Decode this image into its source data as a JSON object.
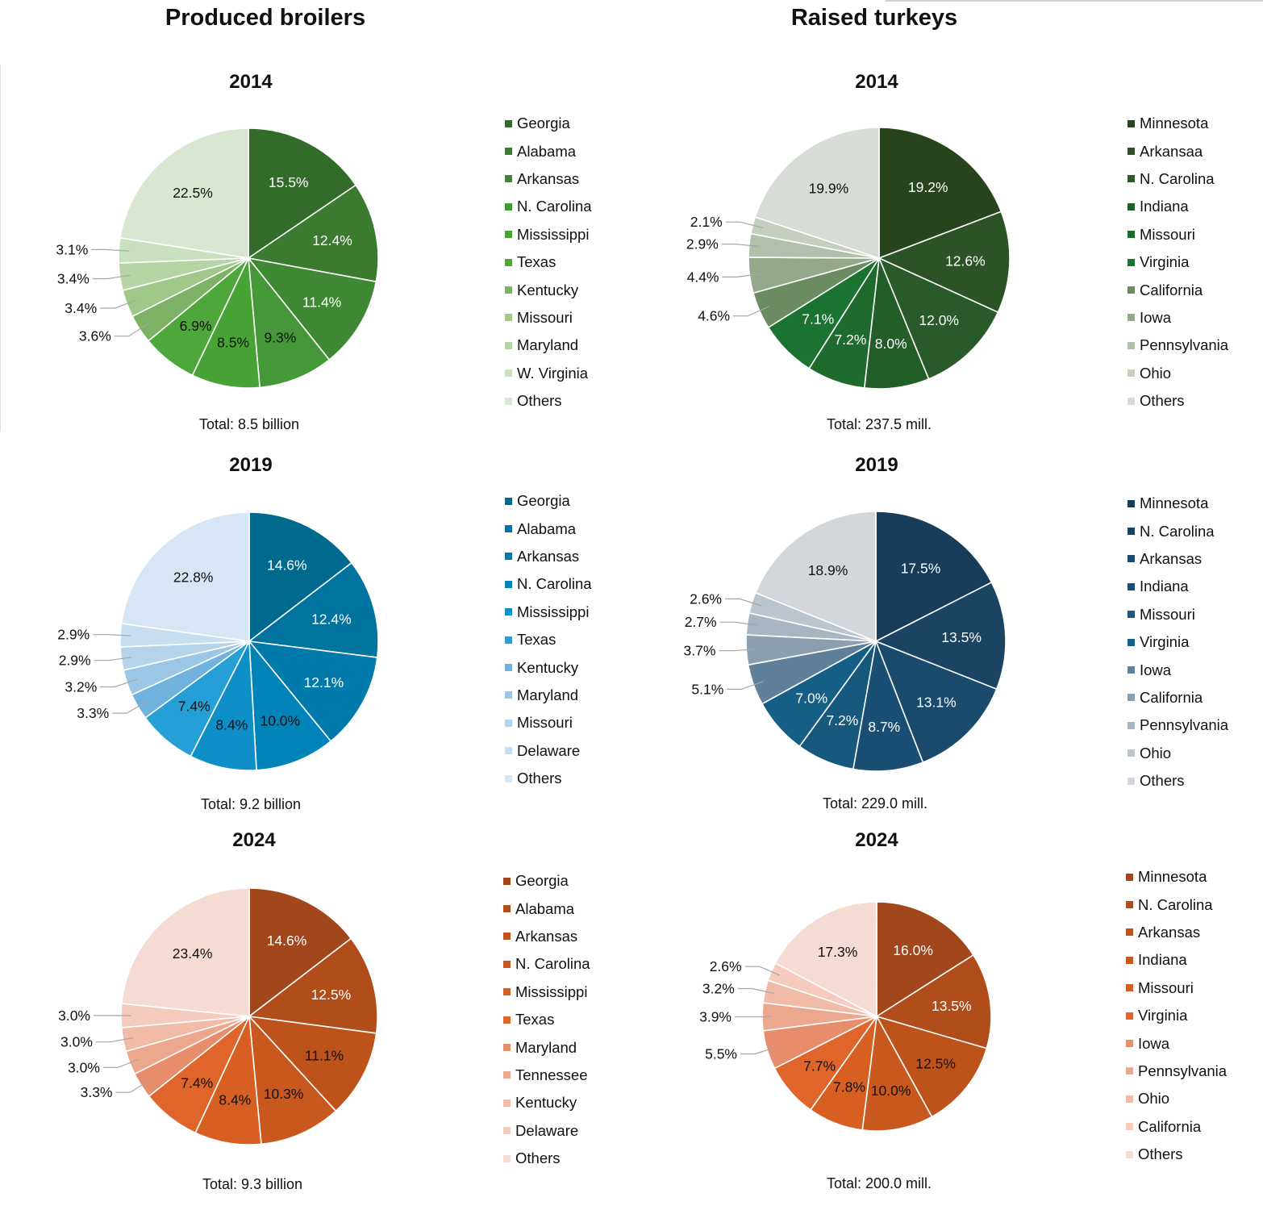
{
  "columns": {
    "broilers_title": "Produced broilers",
    "turkeys_title": "Raised turkeys"
  },
  "chart_data": [
    {
      "type": "pie",
      "group": "Produced broilers",
      "title": "2014",
      "total": "Total: 8.5 billion",
      "categories": [
        "Georgia",
        "Alabama",
        "Arkansas",
        "N. Carolina",
        "Mississippi",
        "Texas",
        "Kentucky",
        "Missouri",
        "Maryland",
        "W. Virginia",
        "Others"
      ],
      "values": [
        15.5,
        12.4,
        11.4,
        9.3,
        8.5,
        6.9,
        3.6,
        3.4,
        3.4,
        3.1,
        22.5
      ],
      "labels": [
        "15.5%",
        "12.4%",
        "11.4%",
        "9.3%",
        "8.5%",
        "6.9%",
        "3.6%",
        "3.4%",
        "3.4%",
        "3.1%",
        "22.5%"
      ],
      "colors": [
        "#336b2a",
        "#3a7b30",
        "#3f8934",
        "#449837",
        "#47a336",
        "#4ea73a",
        "#7db164",
        "#a0c88a",
        "#b5d5a5",
        "#c8e0bd",
        "#d9e7d1"
      ],
      "label_colors": [
        "#ffffff",
        "#ffffff",
        "#ffffff",
        "#111111",
        "#111111",
        "#111111",
        "#111111",
        "#111111",
        "#111111",
        "#111111",
        "#111111"
      ]
    },
    {
      "type": "pie",
      "group": "Raised turkeys",
      "title": "2014",
      "total": "Total: 237.5 mill.",
      "categories": [
        "Minnesota",
        "Arkansaa",
        "N. Carolina",
        "Indiana",
        "Missouri",
        "Virginia",
        "California",
        "Iowa",
        "Pennsylvania",
        "Ohio",
        "Others"
      ],
      "values": [
        19.2,
        12.6,
        12.0,
        8.0,
        7.2,
        7.1,
        4.6,
        4.4,
        2.9,
        2.1,
        19.9
      ],
      "labels": [
        "19.2%",
        "12.6%",
        "12.0%",
        "8.0%",
        "7.2%",
        "7.1%",
        "4.6%",
        "4.4%",
        "2.9%",
        "2.1%",
        "19.9%"
      ],
      "colors": [
        "#27441d",
        "#2c5326",
        "#2b5a2a",
        "#235e28",
        "#1f6a2d",
        "#1a7330",
        "#6a8c60",
        "#94a98b",
        "#b2c0ab",
        "#c6cfbf",
        "#d8dcd6"
      ],
      "label_colors": [
        "#ffffff",
        "#ffffff",
        "#ffffff",
        "#ffffff",
        "#ffffff",
        "#ffffff",
        "#111111",
        "#111111",
        "#111111",
        "#111111",
        "#111111"
      ]
    },
    {
      "type": "pie",
      "group": "Produced broilers",
      "title": "2019",
      "total": "Total: 9.2 billion",
      "categories": [
        "Georgia",
        "Alabama",
        "Arkansas",
        "N. Carolina",
        "Mississippi",
        "Texas",
        "Kentucky",
        "Maryland",
        "Missouri",
        "Delaware",
        "Others"
      ],
      "values": [
        14.6,
        12.4,
        12.1,
        10.0,
        8.4,
        7.4,
        3.3,
        3.2,
        2.9,
        2.9,
        22.8
      ],
      "labels": [
        "14.6%",
        "12.4%",
        "12.1%",
        "10.0%",
        "8.4%",
        "7.4%",
        "3.3%",
        "3.2%",
        "2.9%",
        "2.9%",
        "22.8%"
      ],
      "colors": [
        "#006a8e",
        "#00739f",
        "#0079ab",
        "#0083b8",
        "#0e8fc7",
        "#269fd6",
        "#6fb2de",
        "#9cc6e5",
        "#b5d4ec",
        "#c6def0",
        "#d6e6f4"
      ],
      "label_colors": [
        "#ffffff",
        "#ffffff",
        "#ffffff",
        "#111111",
        "#111111",
        "#111111",
        "#111111",
        "#111111",
        "#111111",
        "#111111",
        "#111111"
      ]
    },
    {
      "type": "pie",
      "group": "Raised turkeys",
      "title": "2019",
      "total": "Total: 229.0 mill.",
      "categories": [
        "Minnesota",
        "N. Carolina",
        "Arkansas",
        "Indiana",
        "Missouri",
        "Virginia",
        "Iowa",
        "California",
        "Pennsylvania",
        "Ohio",
        "Others"
      ],
      "values": [
        17.5,
        13.5,
        13.1,
        8.7,
        7.2,
        7.0,
        5.1,
        3.7,
        2.7,
        2.6,
        18.9
      ],
      "labels": [
        "17.5%",
        "13.5%",
        "13.1%",
        "8.7%",
        "7.2%",
        "7.0%",
        "5.1%",
        "3.7%",
        "2.7%",
        "2.6%",
        "18.9%"
      ],
      "colors": [
        "#173d5a",
        "#1a4462",
        "#1a4a6c",
        "#1a4f74",
        "#17587d",
        "#155f86",
        "#5f7f9a",
        "#8c9fb0",
        "#a8b5c2",
        "#bcc5ce",
        "#d3d7dc"
      ],
      "label_colors": [
        "#ffffff",
        "#ffffff",
        "#ffffff",
        "#ffffff",
        "#ffffff",
        "#ffffff",
        "#111111",
        "#111111",
        "#111111",
        "#111111",
        "#111111"
      ]
    },
    {
      "type": "pie",
      "group": "Produced broilers",
      "title": "2024",
      "total": "Total: 9.3 billion",
      "categories": [
        "Georgia",
        "Alabama",
        "Arkansas",
        "N. Carolina",
        "Mississippi",
        "Texas",
        "Maryland",
        "Tennessee",
        "Kentucky",
        "Delaware",
        "Others"
      ],
      "values": [
        14.6,
        12.5,
        11.1,
        10.3,
        8.4,
        7.4,
        3.3,
        3.0,
        3.0,
        3.0,
        23.4
      ],
      "labels": [
        "14.6%",
        "12.5%",
        "11.1%",
        "10.3%",
        "8.4%",
        "7.4%",
        "3.3%",
        "3.0%",
        "3.0%",
        "3.0%",
        "23.4%"
      ],
      "colors": [
        "#a2461b",
        "#b14d1b",
        "#be521b",
        "#c9581e",
        "#d65f21",
        "#e0652a",
        "#e88d6b",
        "#eda78e",
        "#f1bba7",
        "#f4cbbd",
        "#f6dbd2"
      ],
      "label_colors": [
        "#ffffff",
        "#ffffff",
        "#111111",
        "#111111",
        "#111111",
        "#111111",
        "#111111",
        "#111111",
        "#111111",
        "#111111",
        "#111111"
      ]
    },
    {
      "type": "pie",
      "group": "Raised turkeys",
      "title": "2024",
      "total": "Total: 200.0 mill.",
      "categories": [
        "Minnesota",
        "N. Carolina",
        "Arkansas",
        "Indiana",
        "Missouri",
        "Virginia",
        "Iowa",
        "Pennsylvania",
        "Ohio",
        "California",
        "Others"
      ],
      "values": [
        16.0,
        13.5,
        12.5,
        10.0,
        7.8,
        7.7,
        5.5,
        3.9,
        3.2,
        2.6,
        17.3
      ],
      "labels": [
        "16.0%",
        "13.5%",
        "12.5%",
        "10.0%",
        "7.8%",
        "7.7%",
        "5.5%",
        "3.9%",
        "3.2%",
        "2.6%",
        "17.3%"
      ],
      "colors": [
        "#a2461b",
        "#b14d1b",
        "#be521b",
        "#c9581e",
        "#d65f21",
        "#e0652a",
        "#e88d6b",
        "#eda78e",
        "#f1bba7",
        "#f4cbbd",
        "#f6dbd2"
      ],
      "label_colors": [
        "#ffffff",
        "#ffffff",
        "#111111",
        "#111111",
        "#111111",
        "#111111",
        "#111111",
        "#111111",
        "#111111",
        "#111111",
        "#111111"
      ]
    }
  ]
}
